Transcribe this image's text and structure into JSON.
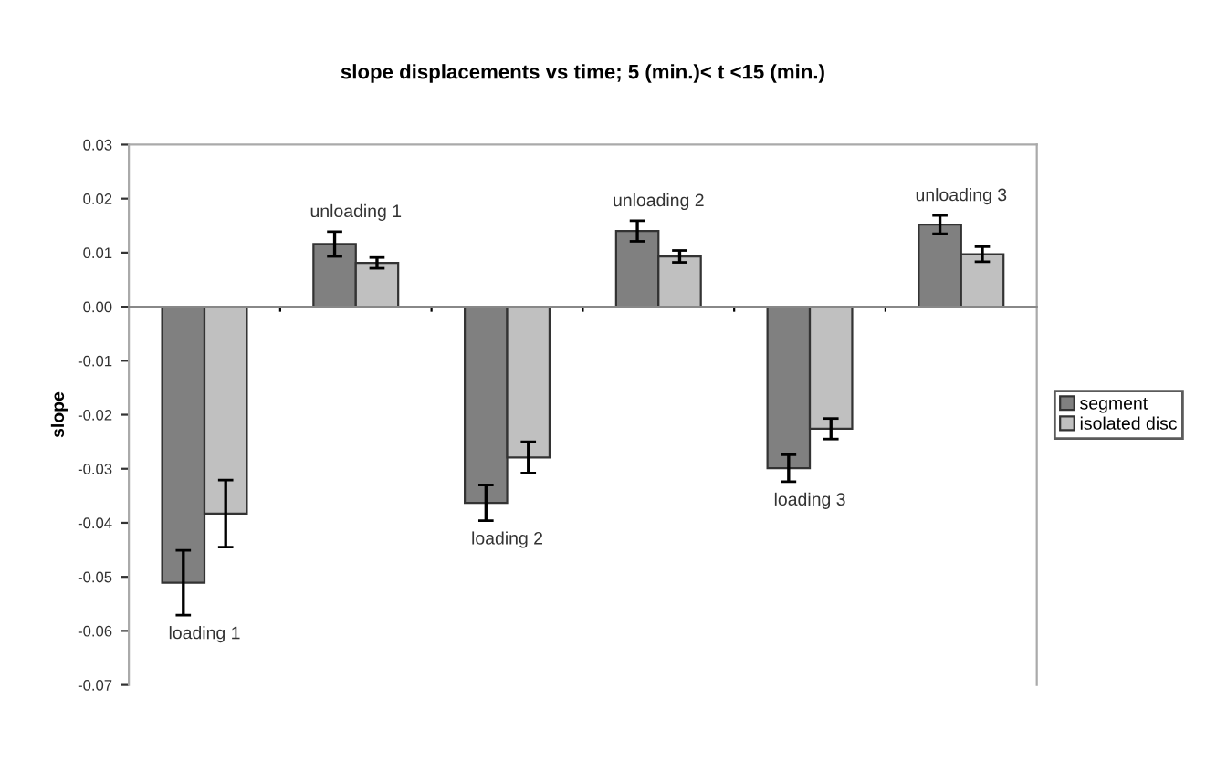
{
  "chart_data": {
    "type": "bar",
    "title": "slope displacements vs time; 5 (min.)< t <15 (min.)",
    "ylabel": "slope",
    "categories": [
      null,
      null,
      null,
      null,
      null,
      null
    ],
    "series": [
      {
        "name": "segment",
        "color": "#808080",
        "values": [
          -0.0511,
          0.0116,
          -0.0363,
          0.014,
          -0.0299,
          0.0152
        ],
        "errors": [
          0.006,
          0.0023,
          0.0033,
          0.0019,
          0.0025,
          0.0017
        ]
      },
      {
        "name": "isolated disc",
        "color": "#c0c0c0",
        "values": [
          -0.0383,
          0.0081,
          -0.0279,
          0.0093,
          -0.0226,
          0.0097
        ],
        "errors": [
          0.0062,
          0.001,
          0.0029,
          0.0011,
          0.0019,
          0.0014
        ]
      }
    ],
    "annotations": [
      "loading 1",
      "unloading 1",
      "loading 2",
      "unloading 2",
      "loading 3",
      "unloading 3"
    ],
    "ylim": [
      -0.07,
      0.03
    ],
    "yticks": [
      {
        "value": 0.03,
        "label": "0.03"
      },
      {
        "value": 0.02,
        "label": "0.02"
      },
      {
        "value": 0.01,
        "label": "0.01"
      },
      {
        "value": 0,
        "label": "0.00"
      },
      {
        "value": -0.01,
        "label": "-0.01"
      },
      {
        "value": -0.02,
        "label": "-0.02"
      },
      {
        "value": -0.03,
        "label": "-0.03"
      },
      {
        "value": -0.04,
        "label": "-0.04"
      },
      {
        "value": -0.05,
        "label": "-0.05"
      },
      {
        "value": -0.06,
        "label": "-0.06"
      },
      {
        "value": -0.07,
        "label": "-0.07"
      }
    ],
    "legend": "right"
  }
}
